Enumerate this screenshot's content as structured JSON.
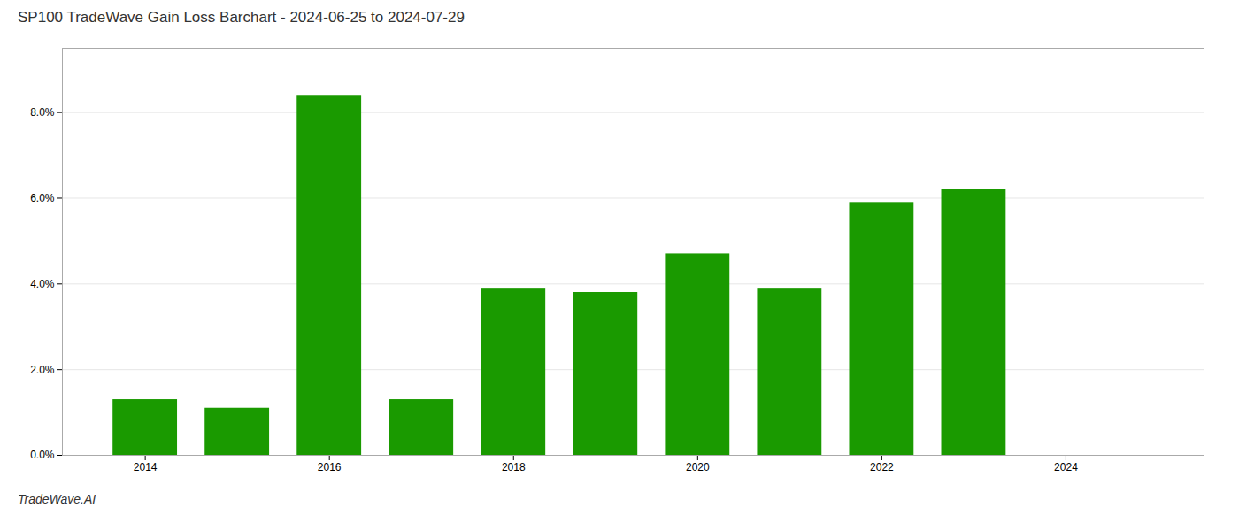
{
  "chart_data": {
    "type": "bar",
    "title": "SP100 TradeWave Gain Loss Barchart - 2024-06-25 to 2024-07-29",
    "annotations": [
      "TradeWave.AI"
    ],
    "x": [
      2014,
      2015,
      2016,
      2017,
      2018,
      2019,
      2020,
      2021,
      2022,
      2023
    ],
    "values": [
      0.013,
      0.011,
      0.084,
      0.013,
      0.039,
      0.038,
      0.047,
      0.039,
      0.059,
      0.062
    ],
    "color": "#1a9a00",
    "xlim": [
      2013.1,
      2025.5
    ],
    "xticks": [
      2014,
      2016,
      2018,
      2020,
      2022,
      2024
    ],
    "ylim": [
      0,
      0.095
    ],
    "yticks": [
      {
        "value": 0.0,
        "label": "0.0%"
      },
      {
        "value": 0.02,
        "label": "2.0%"
      },
      {
        "value": 0.04,
        "label": "4.0%"
      },
      {
        "value": 0.06,
        "label": "6.0%"
      },
      {
        "value": 0.08,
        "label": "8.0%"
      }
    ],
    "grid": true
  }
}
